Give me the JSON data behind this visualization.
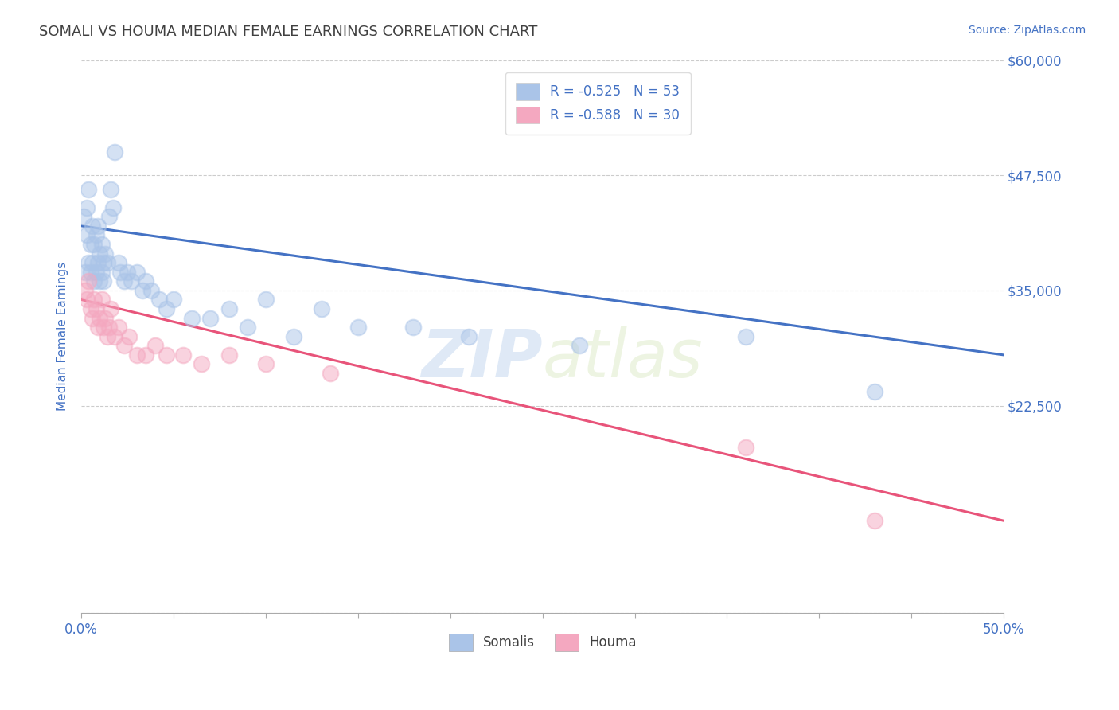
{
  "title": "SOMALI VS HOUMA MEDIAN FEMALE EARNINGS CORRELATION CHART",
  "source": "Source: ZipAtlas.com",
  "ylabel": "Median Female Earnings",
  "xlim": [
    0.0,
    0.5
  ],
  "ylim": [
    0,
    60000
  ],
  "yticks": [
    0,
    22500,
    35000,
    47500,
    60000
  ],
  "xticks": [
    0.0,
    0.05,
    0.1,
    0.15,
    0.2,
    0.25,
    0.3,
    0.35,
    0.4,
    0.45,
    0.5
  ],
  "xtick_labels_show": [
    "0.0%",
    "",
    "",
    "",
    "",
    "",
    "",
    "",
    "",
    "",
    "50.0%"
  ],
  "ytick_labels": [
    "",
    "$22,500",
    "$35,000",
    "$47,500",
    "$60,000"
  ],
  "somali_color": "#aac4e8",
  "houma_color": "#f4a8c0",
  "somali_line_color": "#4472c4",
  "houma_line_color": "#e8547a",
  "somali_R": -0.525,
  "somali_N": 53,
  "houma_R": -0.588,
  "houma_N": 30,
  "background_color": "#ffffff",
  "grid_color": "#cccccc",
  "title_color": "#404040",
  "axis_label_color": "#4472c4",
  "tick_label_color": "#4472c4",
  "watermark_zip": "ZIP",
  "watermark_atlas": "atlas",
  "legend_label_somali": "Somalis",
  "legend_label_houma": "Houma",
  "somali_x": [
    0.001,
    0.002,
    0.003,
    0.003,
    0.004,
    0.004,
    0.005,
    0.005,
    0.006,
    0.006,
    0.007,
    0.007,
    0.008,
    0.008,
    0.009,
    0.009,
    0.01,
    0.01,
    0.011,
    0.011,
    0.012,
    0.012,
    0.013,
    0.014,
    0.015,
    0.016,
    0.017,
    0.018,
    0.02,
    0.021,
    0.023,
    0.025,
    0.027,
    0.03,
    0.033,
    0.035,
    0.038,
    0.042,
    0.046,
    0.05,
    0.06,
    0.07,
    0.08,
    0.09,
    0.1,
    0.115,
    0.13,
    0.15,
    0.18,
    0.21,
    0.27,
    0.36,
    0.43
  ],
  "somali_y": [
    43000,
    37000,
    41000,
    44000,
    46000,
    38000,
    37000,
    40000,
    38000,
    42000,
    36000,
    40000,
    37000,
    41000,
    38000,
    42000,
    39000,
    36000,
    40000,
    37000,
    38000,
    36000,
    39000,
    38000,
    43000,
    46000,
    44000,
    50000,
    38000,
    37000,
    36000,
    37000,
    36000,
    37000,
    35000,
    36000,
    35000,
    34000,
    33000,
    34000,
    32000,
    32000,
    33000,
    31000,
    34000,
    30000,
    33000,
    31000,
    31000,
    30000,
    29000,
    30000,
    24000
  ],
  "houma_x": [
    0.002,
    0.003,
    0.004,
    0.005,
    0.006,
    0.007,
    0.008,
    0.009,
    0.01,
    0.011,
    0.012,
    0.013,
    0.014,
    0.015,
    0.016,
    0.018,
    0.02,
    0.023,
    0.026,
    0.03,
    0.035,
    0.04,
    0.046,
    0.055,
    0.065,
    0.08,
    0.1,
    0.135,
    0.36,
    0.43
  ],
  "houma_y": [
    35000,
    34000,
    36000,
    33000,
    32000,
    34000,
    33000,
    31000,
    32000,
    34000,
    31000,
    32000,
    30000,
    31000,
    33000,
    30000,
    31000,
    29000,
    30000,
    28000,
    28000,
    29000,
    28000,
    28000,
    27000,
    28000,
    27000,
    26000,
    18000,
    10000
  ],
  "somali_trend_x": [
    0.0,
    0.5
  ],
  "somali_trend_y": [
    42000,
    28000
  ],
  "houma_trend_x": [
    0.0,
    0.5
  ],
  "houma_trend_y": [
    34000,
    10000
  ]
}
